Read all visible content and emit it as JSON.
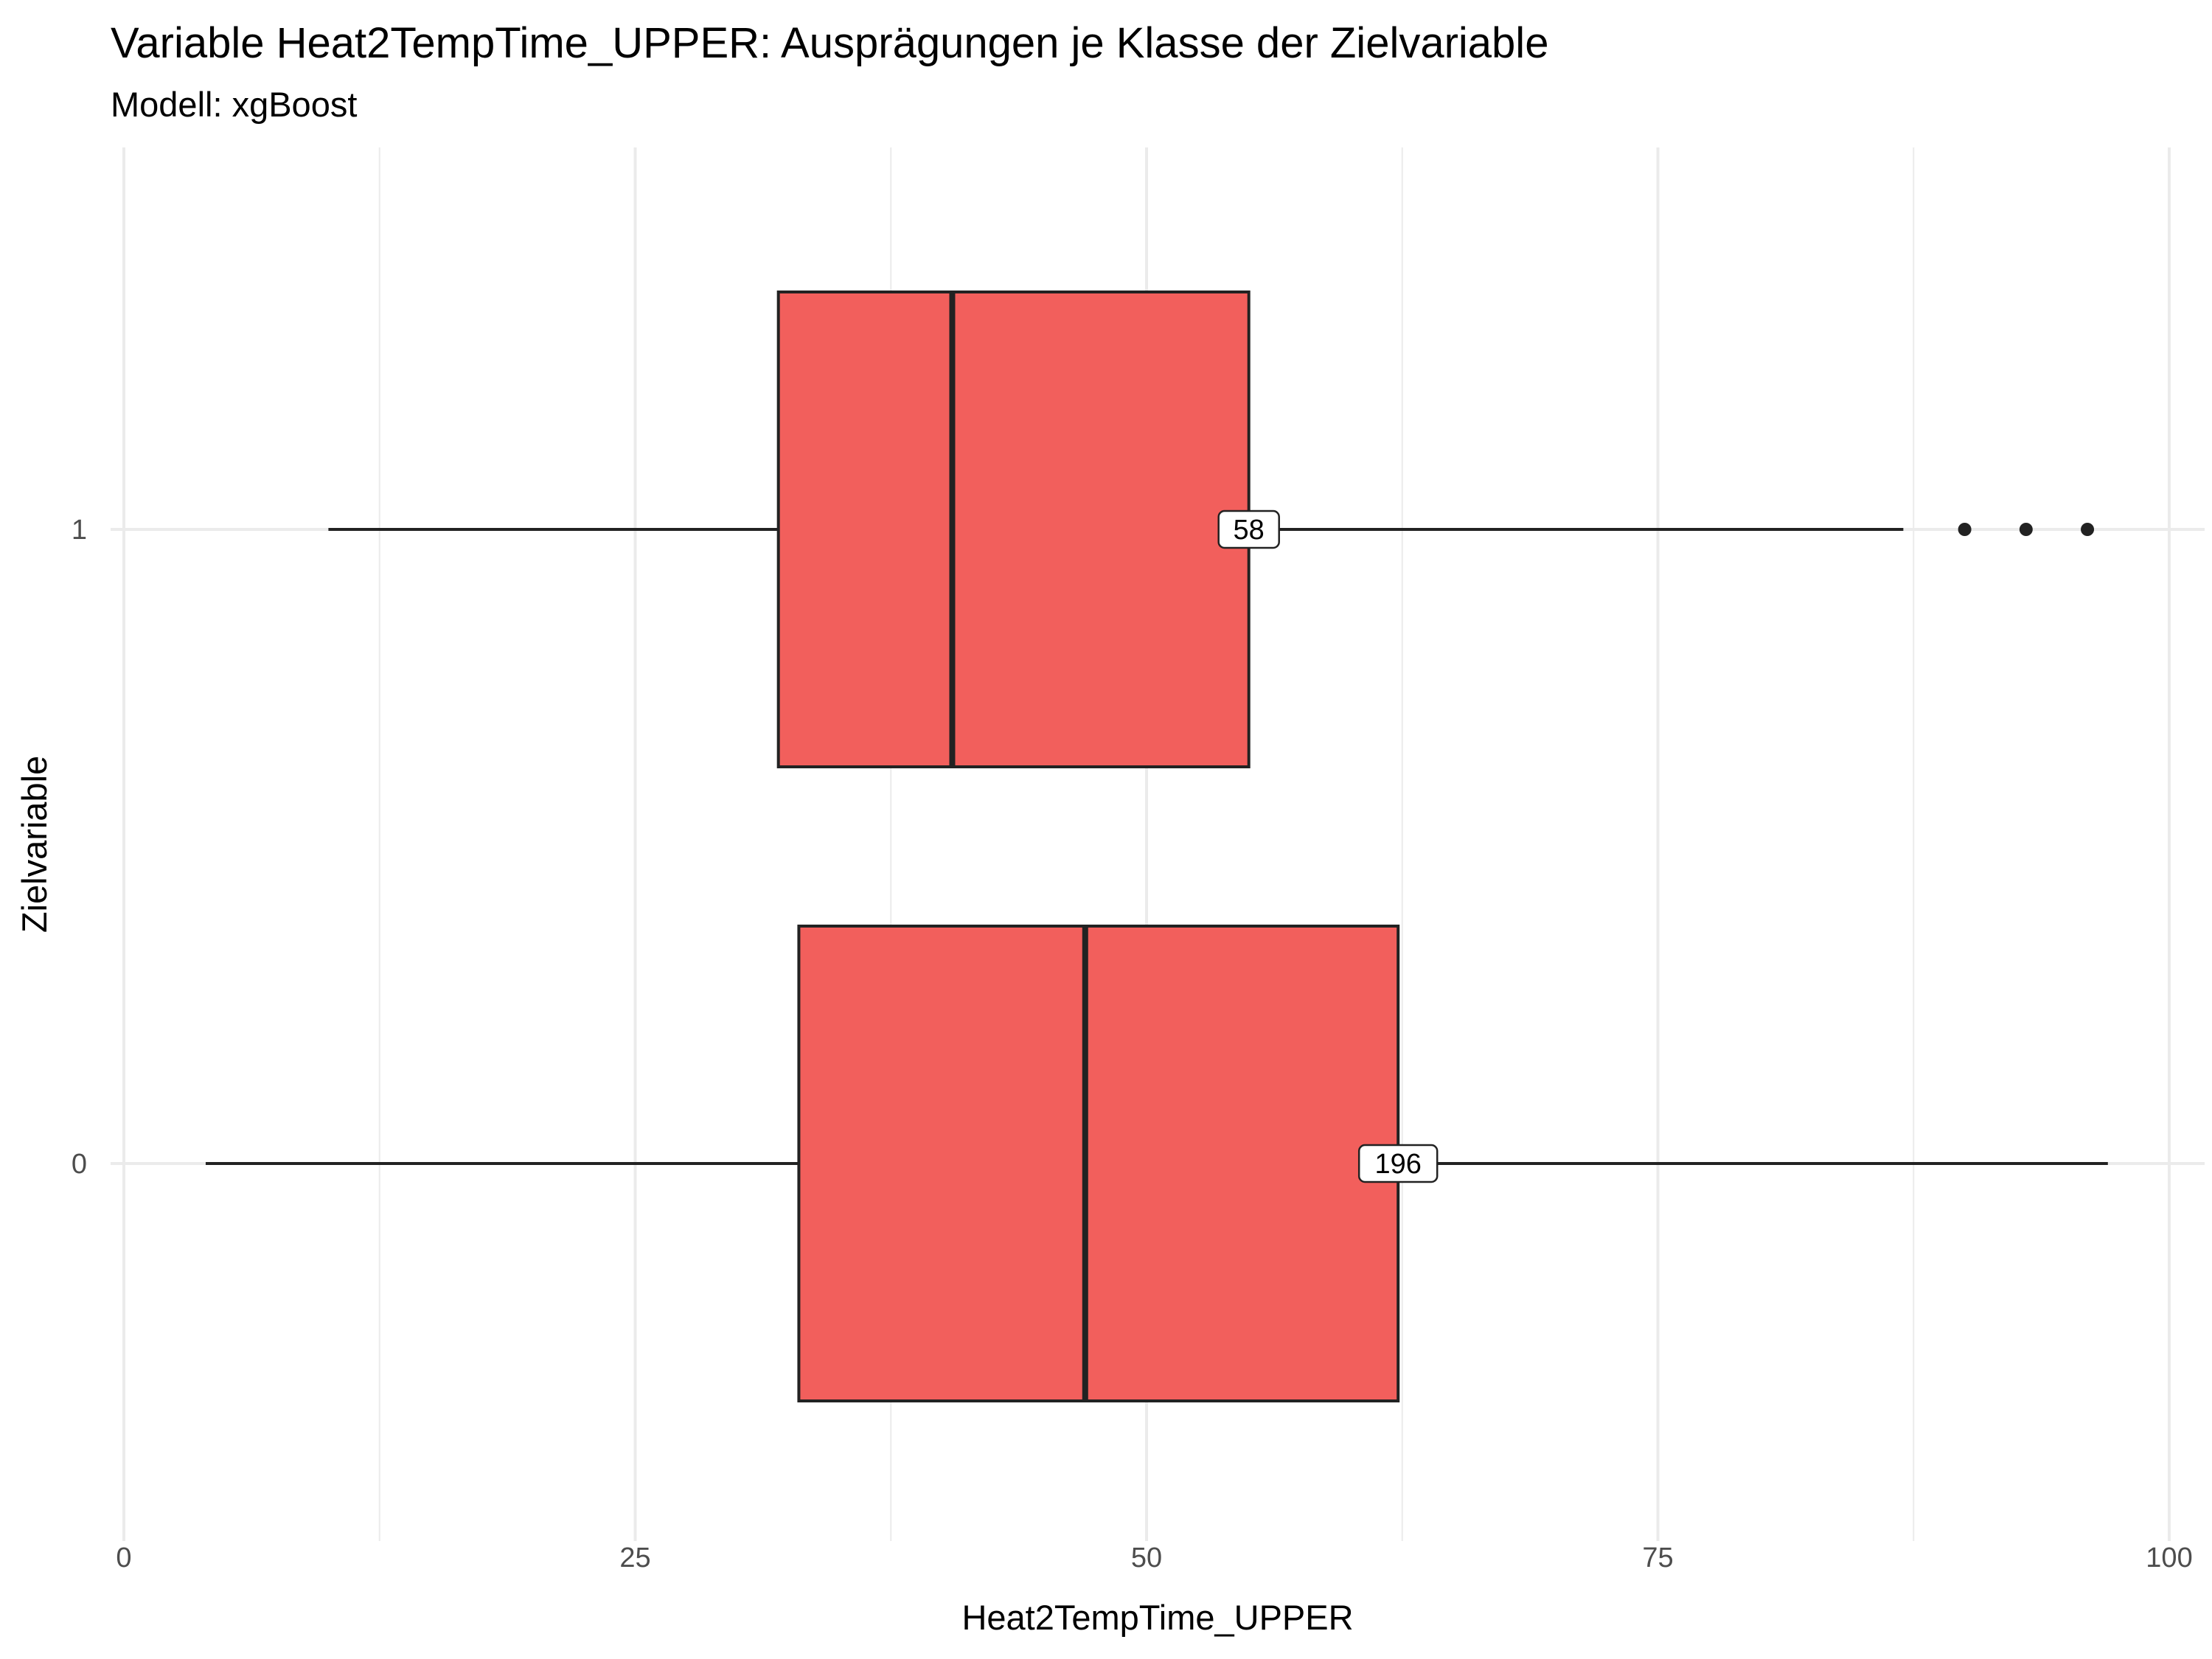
{
  "chart_data": {
    "type": "boxplot",
    "orientation": "horizontal",
    "title": "Variable Heat2TempTime_UPPER: Ausprägungen je Klasse der Zielvariable",
    "subtitle": "Modell: xgBoost",
    "xlabel": "Heat2TempTime_UPPER",
    "ylabel": "Zielvariable",
    "xlim": [
      -1.5,
      101.5
    ],
    "xticks": [
      0,
      25,
      50,
      75,
      100
    ],
    "xtick_labels": [
      "0",
      "25",
      "50",
      "75",
      "100"
    ],
    "grid": true,
    "fill_color": "#f25f5c",
    "categories": [
      "1",
      "0"
    ],
    "boxes": [
      {
        "category": "1",
        "whisker_low": 10,
        "q1": 32,
        "median": 40.5,
        "q3": 55,
        "whisker_high": 87,
        "outliers": [
          90,
          93,
          96
        ],
        "label": "58"
      },
      {
        "category": "0",
        "whisker_low": 4,
        "q1": 33,
        "median": 47,
        "q3": 62.3,
        "whisker_high": 97,
        "outliers": [],
        "label": "196"
      }
    ]
  }
}
